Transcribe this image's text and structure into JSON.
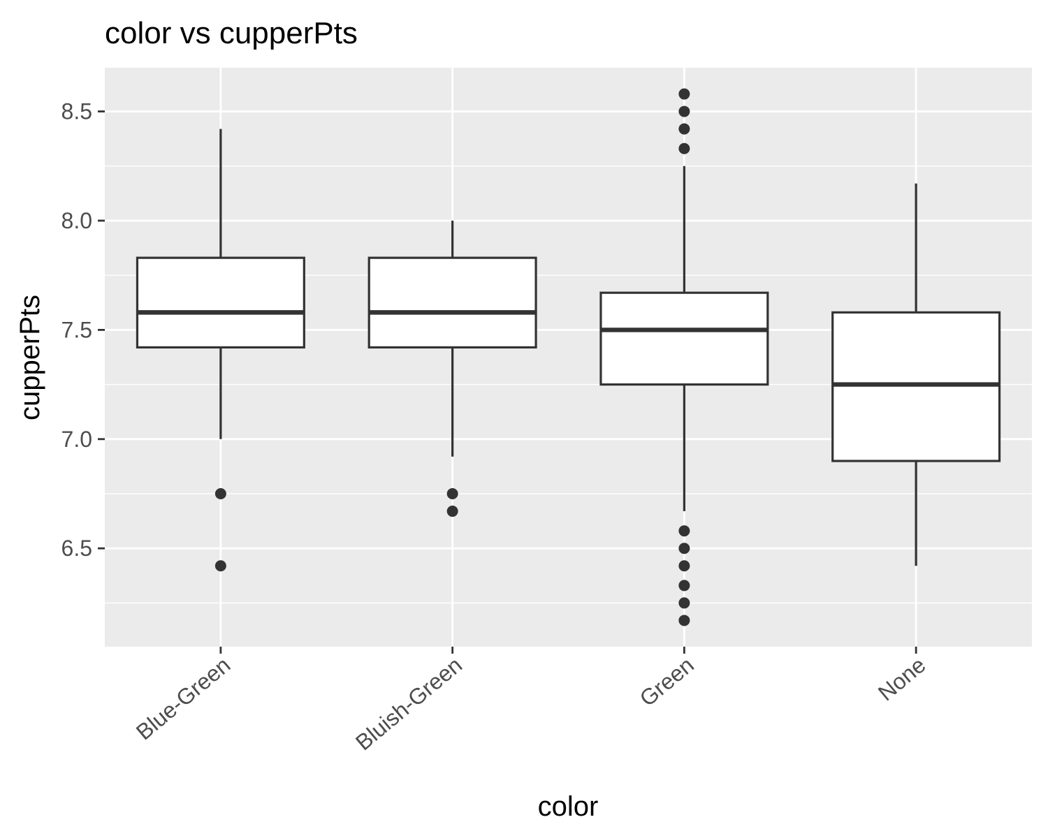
{
  "chart_data": {
    "type": "boxplot",
    "title": "color vs cupperPts",
    "xlabel": "color",
    "ylabel": "cupperPts",
    "ylim": [
      6.05,
      8.7
    ],
    "yticks": [
      "6.5",
      "7.0",
      "7.5",
      "8.0",
      "8.5"
    ],
    "categories": [
      "Blue-Green",
      "Bluish-Green",
      "Green",
      "None"
    ],
    "boxes": [
      {
        "category": "Blue-Green",
        "whisker_low": 7.0,
        "q1": 7.42,
        "median": 7.58,
        "q3": 7.83,
        "whisker_high": 8.42,
        "outliers": [
          6.75,
          6.42
        ]
      },
      {
        "category": "Bluish-Green",
        "whisker_low": 6.92,
        "q1": 7.42,
        "median": 7.58,
        "q3": 7.83,
        "whisker_high": 8.0,
        "outliers": [
          6.75,
          6.67
        ]
      },
      {
        "category": "Green",
        "whisker_low": 6.67,
        "q1": 7.25,
        "median": 7.5,
        "q3": 7.67,
        "whisker_high": 8.25,
        "outliers": [
          8.58,
          8.5,
          8.42,
          8.33,
          6.58,
          6.5,
          6.42,
          6.33,
          6.25,
          6.17
        ]
      },
      {
        "category": "None",
        "whisker_low": 6.42,
        "q1": 6.9,
        "median": 7.25,
        "q3": 7.58,
        "whisker_high": 8.17,
        "outliers": []
      }
    ],
    "grid": true,
    "colors": {
      "panel": "#ebebeb",
      "grid": "#ffffff",
      "box_fill": "#ffffff",
      "box_line": "#333333",
      "tick": "#333333"
    }
  }
}
